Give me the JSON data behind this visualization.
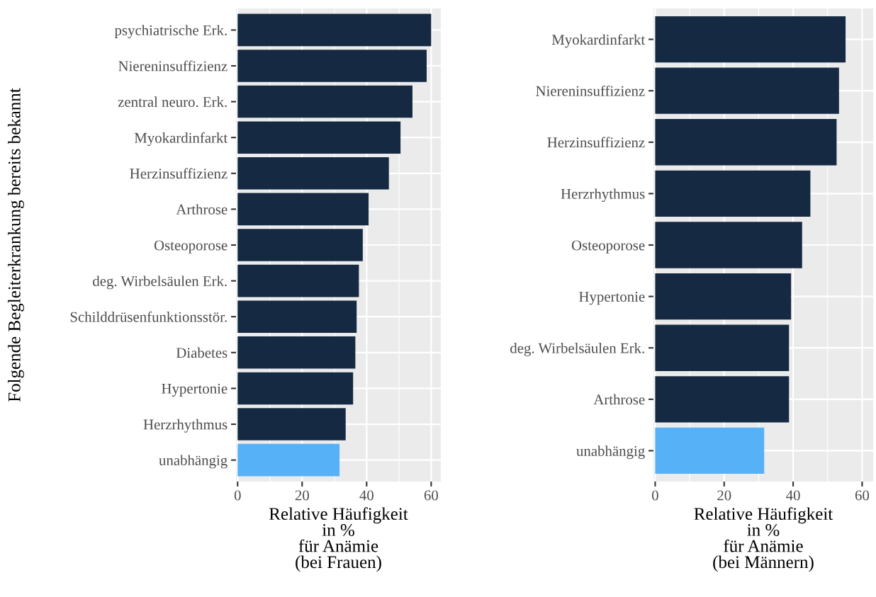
{
  "chart_data": [
    {
      "type": "bar",
      "orientation": "horizontal",
      "ylabel": "Folgende Begleiterkrankung bereits bekannt",
      "xlabel": "Relative Häufigkeit\nin %\nfür Anämie\n(bei Frauen)",
      "categories": [
        "psychiatrische Erk.",
        "Niereninsuffizienz",
        "zentral neuro. Erk.",
        "Myokardinfarkt",
        "Herzinsuffizienz",
        "Arthrose",
        "Osteoporose",
        "deg. Wirbelsäulen Erk.",
        "Schilddrüsenfunktionsstör.",
        "Diabetes",
        "Hypertonie",
        "Herzrhythmus",
        "unabhängig"
      ],
      "values": [
        60.0,
        58.6,
        54.2,
        50.5,
        46.9,
        40.6,
        38.8,
        37.6,
        36.9,
        36.5,
        35.8,
        33.5,
        31.6
      ],
      "colors": [
        "#152a42",
        "#152a42",
        "#152a42",
        "#152a42",
        "#152a42",
        "#152a42",
        "#152a42",
        "#152a42",
        "#152a42",
        "#152a42",
        "#152a42",
        "#152a42",
        "#56b1f7"
      ],
      "xlim": [
        -0.5,
        63
      ],
      "xticks": [
        0,
        20,
        40,
        60
      ],
      "grid": true
    },
    {
      "type": "bar",
      "orientation": "horizontal",
      "xlabel": "Relative Häufigkeit\nin %\nfür Anämie\n(bei Männern)",
      "categories": [
        "Myokardinfarkt",
        "Niereninsuffizienz",
        "Herzinsuffizienz",
        "Herzrhythmus",
        "Osteoporose",
        "Hypertonie",
        "deg. Wirbelsäulen Erk.",
        "Arthrose",
        "unabhängig"
      ],
      "values": [
        55.2,
        53.3,
        52.6,
        45.0,
        42.6,
        39.4,
        38.8,
        38.8,
        31.6
      ],
      "colors": [
        "#152a42",
        "#152a42",
        "#152a42",
        "#152a42",
        "#152a42",
        "#152a42",
        "#152a42",
        "#152a42",
        "#56b1f7"
      ],
      "xlim": [
        -0.5,
        63.2
      ],
      "xticks": [
        0,
        20,
        40,
        60
      ],
      "grid": true
    }
  ]
}
